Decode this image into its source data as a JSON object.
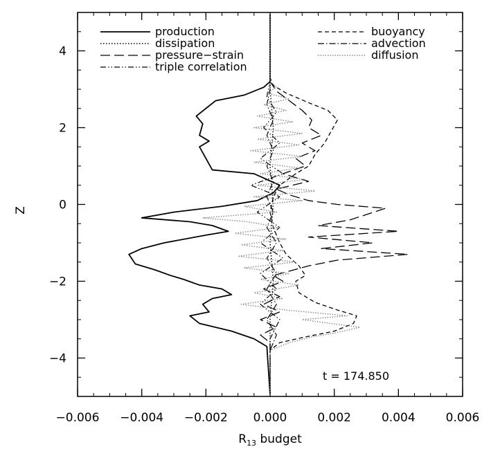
{
  "chart_data": {
    "type": "line",
    "xlabel_main": "R",
    "xlabel_sub": "13",
    "xlabel_rest": " budget",
    "ylabel": "Z",
    "xlim": [
      -0.006,
      0.006
    ],
    "ylim": [
      -5,
      5
    ],
    "x_ticks": [
      "−0.006",
      "−0.004",
      "−0.002",
      "0.000",
      "0.002",
      "0.004",
      "0.006"
    ],
    "y_ticks": [
      "−4",
      "−2",
      "0",
      "2",
      "4"
    ],
    "annotation": "t = 174.850",
    "legend_left": [
      "production",
      "dissipation",
      "pressure−strain",
      "triple correlation"
    ],
    "legend_right": [
      "buoyancy",
      "advection",
      "diffusion"
    ],
    "series": [
      {
        "name": "production",
        "style": "solid",
        "points": [
          [
            0.0,
            -4.95
          ],
          [
            -0.0001,
            -3.7
          ],
          [
            -0.0005,
            -3.5
          ],
          [
            -0.0012,
            -3.3
          ],
          [
            -0.0022,
            -3.1
          ],
          [
            -0.0025,
            -2.9
          ],
          [
            -0.0019,
            -2.8
          ],
          [
            -0.0021,
            -2.6
          ],
          [
            -0.0018,
            -2.45
          ],
          [
            -0.0012,
            -2.35
          ],
          [
            -0.0015,
            -2.2
          ],
          [
            -0.0022,
            -2.1
          ],
          [
            -0.0027,
            -1.95
          ],
          [
            -0.0031,
            -1.85
          ],
          [
            -0.0036,
            -1.7
          ],
          [
            -0.0042,
            -1.55
          ],
          [
            -0.0044,
            -1.3
          ],
          [
            -0.004,
            -1.15
          ],
          [
            -0.0033,
            -1.0
          ],
          [
            -0.002,
            -0.8
          ],
          [
            -0.0013,
            -0.7
          ],
          [
            -0.0018,
            -0.55
          ],
          [
            -0.0025,
            -0.45
          ],
          [
            -0.004,
            -0.35
          ],
          [
            -0.003,
            -0.2
          ],
          [
            -0.0015,
            -0.05
          ],
          [
            -0.0004,
            0.1
          ],
          [
            0.0001,
            0.3
          ],
          [
            0.0003,
            0.5
          ],
          [
            -0.0005,
            0.8
          ],
          [
            -0.0018,
            0.9
          ],
          [
            -0.002,
            1.2
          ],
          [
            -0.0022,
            1.5
          ],
          [
            -0.0019,
            1.65
          ],
          [
            -0.0022,
            1.8
          ],
          [
            -0.0021,
            2.1
          ],
          [
            -0.0023,
            2.3
          ],
          [
            -0.002,
            2.5
          ],
          [
            -0.0017,
            2.7
          ],
          [
            -0.0008,
            2.85
          ],
          [
            -0.0002,
            3.05
          ],
          [
            0.0,
            3.2
          ],
          [
            0.0,
            4.95
          ]
        ]
      },
      {
        "name": "dissipation",
        "style": "dotted",
        "points": [
          [
            0.0,
            -4.95
          ],
          [
            0.0,
            -3.0
          ],
          [
            0.0001,
            -2.0
          ],
          [
            0.0,
            -1.0
          ],
          [
            0.0001,
            0.0
          ],
          [
            0.0,
            1.0
          ],
          [
            0.0001,
            2.0
          ],
          [
            0.0,
            3.0
          ],
          [
            0.0,
            4.95
          ]
        ]
      },
      {
        "name": "pressure−strain",
        "style": "longdash",
        "points": [
          [
            0.0,
            -4.95
          ],
          [
            0.0,
            -3.6
          ],
          [
            -0.0003,
            -3.4
          ],
          [
            0.0002,
            -3.2
          ],
          [
            -0.0003,
            -3.0
          ],
          [
            0.0003,
            -2.8
          ],
          [
            -0.0002,
            -2.6
          ],
          [
            0.0003,
            -2.4
          ],
          [
            -0.0002,
            -2.2
          ],
          [
            0.0004,
            -2.0
          ],
          [
            0.0001,
            -1.85
          ],
          [
            0.0012,
            -1.6
          ],
          [
            0.0021,
            -1.45
          ],
          [
            0.0043,
            -1.3
          ],
          [
            0.0016,
            -1.15
          ],
          [
            0.0032,
            -1.0
          ],
          [
            0.0012,
            -0.85
          ],
          [
            0.004,
            -0.7
          ],
          [
            0.0015,
            -0.55
          ],
          [
            0.0025,
            -0.4
          ],
          [
            0.0036,
            -0.1
          ],
          [
            0.0021,
            0.0
          ],
          [
            0.0012,
            0.1
          ],
          [
            0.0006,
            0.25
          ],
          [
            0.0002,
            0.4
          ],
          [
            0.0012,
            0.6
          ],
          [
            0.0004,
            0.8
          ],
          [
            0.0011,
            1.0
          ],
          [
            0.0008,
            1.2
          ],
          [
            0.0014,
            1.4
          ],
          [
            0.001,
            1.6
          ],
          [
            0.0016,
            1.8
          ],
          [
            0.0012,
            2.0
          ],
          [
            0.0013,
            2.2
          ],
          [
            0.001,
            2.45
          ],
          [
            0.0006,
            2.7
          ],
          [
            0.0002,
            2.95
          ],
          [
            0.0,
            3.2
          ],
          [
            0.0,
            4.95
          ]
        ]
      },
      {
        "name": "triple correlation",
        "style": "dashdotdot",
        "points": [
          [
            0.0,
            -4.95
          ],
          [
            0.0,
            -3.5
          ],
          [
            0.0003,
            -3.0
          ],
          [
            -0.0003,
            -2.6
          ],
          [
            0.0002,
            -2.2
          ],
          [
            -0.0003,
            -1.8
          ],
          [
            0.0004,
            -1.4
          ],
          [
            -0.0003,
            -1.0
          ],
          [
            0.0003,
            -0.6
          ],
          [
            -0.0004,
            -0.2
          ],
          [
            0.0003,
            0.2
          ],
          [
            -0.0006,
            0.5
          ],
          [
            0.0004,
            0.8
          ],
          [
            -0.0003,
            1.2
          ],
          [
            0.0003,
            1.6
          ],
          [
            -0.0002,
            2.0
          ],
          [
            0.0002,
            2.4
          ],
          [
            -0.0001,
            2.8
          ],
          [
            0.0,
            3.2
          ],
          [
            0.0,
            4.95
          ]
        ]
      },
      {
        "name": "buoyancy",
        "style": "shortdash",
        "points": [
          [
            0.0,
            -4.95
          ],
          [
            0.0,
            -3.8
          ],
          [
            0.0003,
            -3.6
          ],
          [
            0.0011,
            -3.45
          ],
          [
            0.002,
            -3.3
          ],
          [
            0.0026,
            -3.1
          ],
          [
            0.0027,
            -2.9
          ],
          [
            0.0021,
            -2.75
          ],
          [
            0.0014,
            -2.55
          ],
          [
            0.0009,
            -2.3
          ],
          [
            0.0008,
            -2.0
          ],
          [
            0.0011,
            -1.85
          ],
          [
            0.0009,
            -1.6
          ],
          [
            0.0005,
            -1.3
          ],
          [
            0.0003,
            -1.0
          ],
          [
            0.0001,
            -0.6
          ],
          [
            0.0,
            -0.2
          ],
          [
            0.0001,
            0.2
          ],
          [
            0.0003,
            0.5
          ],
          [
            0.0008,
            0.8
          ],
          [
            0.0012,
            1.0
          ],
          [
            0.0014,
            1.3
          ],
          [
            0.0017,
            1.6
          ],
          [
            0.0019,
            1.9
          ],
          [
            0.0021,
            2.2
          ],
          [
            0.0018,
            2.45
          ],
          [
            0.0012,
            2.65
          ],
          [
            0.0005,
            2.9
          ],
          [
            0.0001,
            3.1
          ],
          [
            0.0,
            3.3
          ],
          [
            0.0,
            4.95
          ]
        ]
      },
      {
        "name": "advection",
        "style": "dashdot",
        "points": [
          [
            0.0,
            -4.95
          ],
          [
            0.0,
            -3.8
          ],
          [
            0.0002,
            -3.4
          ],
          [
            -0.0001,
            -3.0
          ],
          [
            0.0002,
            -2.6
          ],
          [
            -0.0001,
            -2.2
          ],
          [
            0.0002,
            -1.8
          ],
          [
            -0.0001,
            -1.4
          ],
          [
            0.0002,
            -1.0
          ],
          [
            -0.0001,
            -0.6
          ],
          [
            0.0001,
            -0.2
          ],
          [
            -0.0001,
            0.2
          ],
          [
            0.0001,
            0.6
          ],
          [
            -0.0001,
            1.0
          ],
          [
            0.0001,
            1.4
          ],
          [
            -0.0001,
            1.8
          ],
          [
            0.0001,
            2.2
          ],
          [
            -0.0001,
            2.6
          ],
          [
            0.0,
            3.0
          ],
          [
            0.0,
            4.95
          ]
        ]
      },
      {
        "name": "diffusion",
        "style": "greydot",
        "points": [
          [
            0.0,
            -4.95
          ],
          [
            0.0,
            -3.8
          ],
          [
            0.0006,
            -3.6
          ],
          [
            0.0013,
            -3.45
          ],
          [
            0.002,
            -3.35
          ],
          [
            0.0028,
            -3.2
          ],
          [
            0.001,
            -3.0
          ],
          [
            0.0024,
            -2.9
          ],
          [
            0.0005,
            -2.75
          ],
          [
            -0.0009,
            -2.6
          ],
          [
            0.0004,
            -2.45
          ],
          [
            -0.0005,
            -2.3
          ],
          [
            0.0009,
            -2.1
          ],
          [
            -0.0003,
            -1.95
          ],
          [
            0.0006,
            -1.8
          ],
          [
            -0.0008,
            -1.65
          ],
          [
            0.0008,
            -1.5
          ],
          [
            -0.001,
            -1.35
          ],
          [
            0.0004,
            -1.2
          ],
          [
            -0.0009,
            -1.05
          ],
          [
            0.0005,
            -0.9
          ],
          [
            -0.0011,
            -0.75
          ],
          [
            0.0003,
            -0.6
          ],
          [
            -0.0007,
            -0.45
          ],
          [
            -0.0021,
            -0.35
          ],
          [
            0.0002,
            -0.2
          ],
          [
            -0.0008,
            -0.05
          ],
          [
            0.001,
            0.1
          ],
          [
            -0.0005,
            0.2
          ],
          [
            0.0014,
            0.35
          ],
          [
            -0.0004,
            0.5
          ],
          [
            0.0011,
            0.65
          ],
          [
            -0.0003,
            0.8
          ],
          [
            0.0009,
            0.95
          ],
          [
            -0.0005,
            1.1
          ],
          [
            0.001,
            1.25
          ],
          [
            -0.0006,
            1.4
          ],
          [
            0.0009,
            1.55
          ],
          [
            -0.0004,
            1.7
          ],
          [
            0.001,
            1.85
          ],
          [
            -0.0005,
            2.0
          ],
          [
            0.0007,
            2.15
          ],
          [
            -0.0004,
            2.3
          ],
          [
            0.0005,
            2.45
          ],
          [
            -0.0002,
            2.6
          ],
          [
            0.0006,
            2.75
          ],
          [
            -0.0001,
            2.9
          ],
          [
            0.0002,
            3.05
          ],
          [
            0.0,
            3.2
          ],
          [
            0.0,
            4.95
          ]
        ]
      }
    ]
  }
}
